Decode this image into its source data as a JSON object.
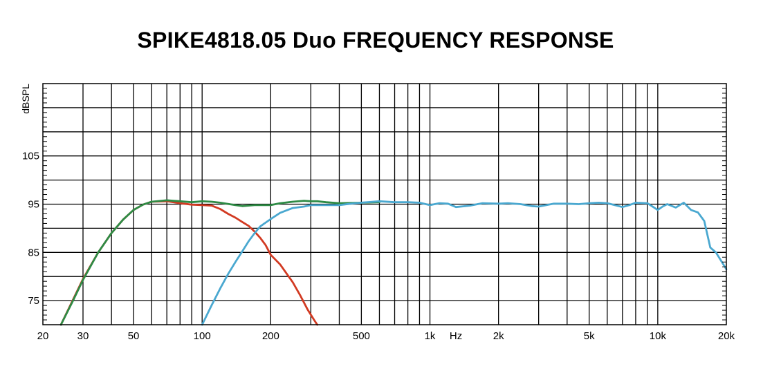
{
  "chart_data": {
    "type": "line",
    "title": "SPIKE4818.05 Duo FREQUENCY RESPONSE",
    "xlabel": "Hz",
    "ylabel": "dBSPL",
    "x_scale": "log",
    "xlim": [
      20,
      20000
    ],
    "ylim": [
      70,
      120
    ],
    "grid": true,
    "x_tick_labels": [
      {
        "value": 20,
        "label": "20"
      },
      {
        "value": 30,
        "label": "30"
      },
      {
        "value": 50,
        "label": "50"
      },
      {
        "value": 100,
        "label": "100"
      },
      {
        "value": 200,
        "label": "200"
      },
      {
        "value": 500,
        "label": "500"
      },
      {
        "value": 1000,
        "label": "1k"
      },
      {
        "value": 2000,
        "label": "2k"
      },
      {
        "value": 5000,
        "label": "5k"
      },
      {
        "value": 10000,
        "label": "10k"
      },
      {
        "value": 20000,
        "label": "20k"
      }
    ],
    "y_tick_labels": [
      {
        "value": 75,
        "label": "75"
      },
      {
        "value": 85,
        "label": "85"
      },
      {
        "value": 95,
        "label": "95"
      },
      {
        "value": 105,
        "label": "105"
      }
    ],
    "series": [
      {
        "color": "#d23a22",
        "x": [
          24,
          27,
          30,
          35,
          40,
          45,
          50,
          55,
          60,
          70,
          80,
          90,
          100,
          110,
          120,
          130,
          140,
          150,
          160,
          170,
          180,
          190,
          200,
          220,
          250,
          270,
          290,
          310,
          320
        ],
        "y": [
          70,
          75,
          79.5,
          85,
          89,
          91.8,
          93.8,
          94.9,
          95.5,
          95.6,
          95.2,
          94.9,
          94.8,
          94.7,
          94,
          93,
          92.2,
          91.3,
          90.5,
          89.3,
          88,
          86.5,
          84.5,
          82.5,
          78.8,
          76,
          73.2,
          71,
          70
        ]
      },
      {
        "color": "#2e8b45",
        "x": [
          24,
          27,
          30,
          35,
          40,
          45,
          50,
          55,
          60,
          70,
          80,
          90,
          100,
          110,
          120,
          140,
          150,
          170,
          200,
          220,
          250,
          280,
          300,
          320,
          350,
          400,
          500,
          600
        ],
        "y": [
          70,
          74.8,
          79.3,
          85,
          89,
          91.8,
          93.8,
          94.9,
          95.5,
          95.8,
          95.6,
          95.4,
          95.6,
          95.5,
          95.3,
          94.8,
          94.6,
          94.8,
          94.8,
          95.2,
          95.5,
          95.7,
          95.6,
          95.6,
          95.4,
          95.2,
          95.3,
          95.4
        ]
      },
      {
        "color": "#4aa8d0",
        "x": [
          100,
          110,
          120,
          130,
          140,
          150,
          160,
          170,
          180,
          200,
          220,
          250,
          280,
          300,
          350,
          400,
          450,
          500,
          600,
          700,
          800,
          900,
          1000,
          1100,
          1200,
          1300,
          1500,
          1700,
          2000,
          2200,
          2500,
          2800,
          3000,
          3500,
          4000,
          4500,
          5000,
          5500,
          6000,
          7000,
          7500,
          8000,
          9000,
          10000,
          10500,
          11000,
          12000,
          13000,
          14000,
          15000,
          16000,
          17000,
          18000,
          20000
        ],
        "y": [
          70,
          74,
          77.5,
          80.5,
          83,
          85.2,
          87.3,
          89,
          90.4,
          91.9,
          93.2,
          94.2,
          94.5,
          94.8,
          94.8,
          94.8,
          95.1,
          95.3,
          95.6,
          95.4,
          95.4,
          95.3,
          94.8,
          95.2,
          95.1,
          94.4,
          94.7,
          95.2,
          95.1,
          95.2,
          95,
          94.6,
          94.5,
          95.1,
          95.1,
          95,
          95.2,
          95.3,
          95.2,
          94.4,
          94.8,
          95.3,
          95.2,
          93.8,
          94.5,
          95,
          94.3,
          95.3,
          93.8,
          93.3,
          91.5,
          86,
          85,
          81.5
        ]
      }
    ]
  }
}
